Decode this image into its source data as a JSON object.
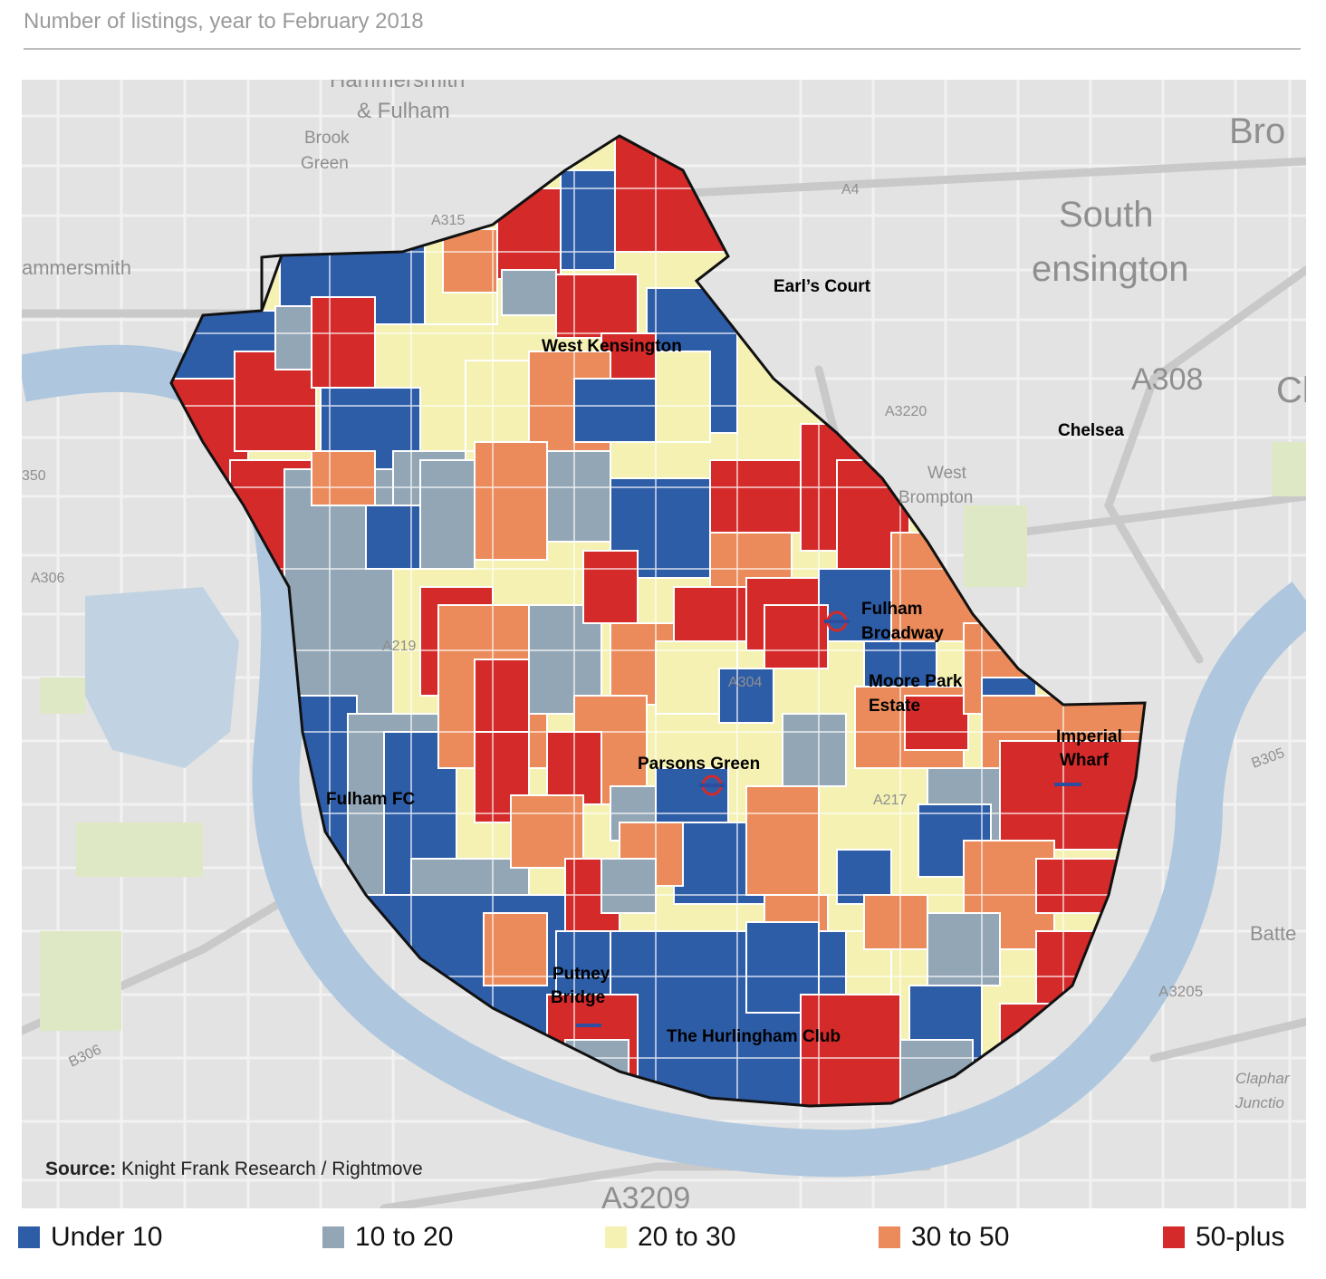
{
  "title": "Number of listings, year to February 2018",
  "source": {
    "bold": "Source:",
    "text": " Knight Frank Research / Rightmove"
  },
  "legend": [
    {
      "label": "Under 10",
      "color": "#2e5da8"
    },
    {
      "label": "10 to 20",
      "color": "#93a6b5"
    },
    {
      "label": "20 to 30",
      "color": "#f4f1b3"
    },
    {
      "label": "30 to 50",
      "color": "#eb8a5a"
    },
    {
      "label": "50-plus",
      "color": "#d42a2a"
    }
  ],
  "places": {
    "earls_court": "Earl’s Court",
    "west_kensington": "West Kensington",
    "chelsea": "Chelsea",
    "fulham_broadway_1": "Fulham",
    "fulham_broadway_2": "Broadway",
    "moore_park_1": "Moore Park",
    "moore_park_2": "Estate",
    "imperial_wharf_1": "Imperial",
    "imperial_wharf_2": "Wharf",
    "parsons_green": "Parsons Green",
    "fulham_fc": "Fulham FC",
    "putney_bridge_1": "Putney",
    "putney_bridge_2": "Bridge",
    "hurlingham": "The Hurlingham Club"
  },
  "basemap": {
    "hammersmith_fulham_1": "Hammersmith",
    "hammersmith_fulham_2": "& Fulham",
    "brook_green_1": "Brook",
    "brook_green_2": "Green",
    "hammersmith": "ammersmith",
    "south_kensington_1": "South",
    "south_kensington_2": "ensington",
    "brompton": "Bro",
    "west_brompton_1": "West",
    "west_brompton_2": "Brompton",
    "a4": "A4",
    "a315": "A315",
    "a3220": "A3220",
    "a308": "A308",
    "ch": "Cl",
    "a306": "A306",
    "n350": "350",
    "a219": "A219",
    "a304": "A304",
    "a217": "A217",
    "b305": "B305",
    "batte": "Batte",
    "a3205": "A3205",
    "a3209": "A3209",
    "b306": "B306",
    "clapham_1": "Claphar",
    "clapham_2": "Junctio"
  },
  "colors": {
    "land": "#e3e3e3",
    "road": "#f7f7f7",
    "river": "#aec7de",
    "park": "#dfe8c4",
    "underground_ring": "#d42a2a",
    "underground_bar": "#2e4d9e"
  }
}
